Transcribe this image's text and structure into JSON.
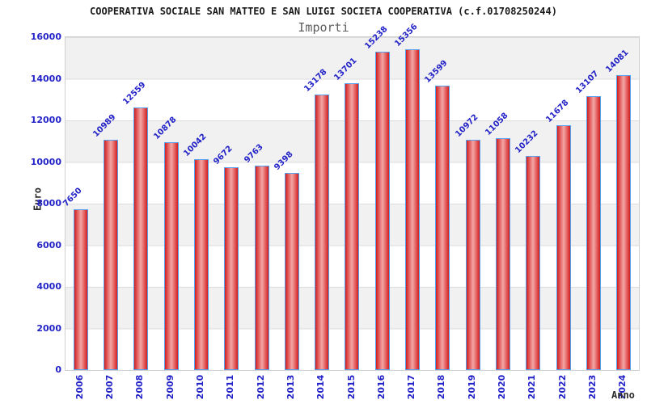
{
  "title": "COOPERATIVA SOCIALE SAN MATTEO E SAN LUIGI SOCIETA COOPERATIVA (c.f.01708250244)",
  "subtitle": "Importi",
  "chart_data": {
    "type": "bar",
    "title": "Importi",
    "xlabel": "Anno",
    "ylabel": "Euro",
    "categories": [
      "2006",
      "2007",
      "2008",
      "2009",
      "2010",
      "2011",
      "2012",
      "2013",
      "2014",
      "2015",
      "2016",
      "2017",
      "2018",
      "2019",
      "2020",
      "2021",
      "2022",
      "2023",
      "2024"
    ],
    "values": [
      7650,
      10989,
      12559,
      10878,
      10042,
      9672,
      9763,
      9398,
      13178,
      13701,
      15238,
      15356,
      13599,
      10972,
      11058,
      10232,
      11678,
      13107,
      14081
    ],
    "ylim": [
      0,
      16000
    ],
    "yticks": [
      0,
      2000,
      4000,
      6000,
      8000,
      10000,
      12000,
      14000,
      16000
    ],
    "grid": "horizontal alternating bands",
    "legend": "none",
    "colors": {
      "bar_fill_edge": "#cf1f1f",
      "bar_fill_center": "#f2a6a6",
      "bar_border": "#55a0f0",
      "label_blue": "#2323c8",
      "band_gray": "#f1f1f1",
      "band_white": "#ffffff",
      "title_color": "#1a1a1a",
      "subtitle_color": "#606060",
      "axis_title_color": "#2b2b2b"
    }
  }
}
